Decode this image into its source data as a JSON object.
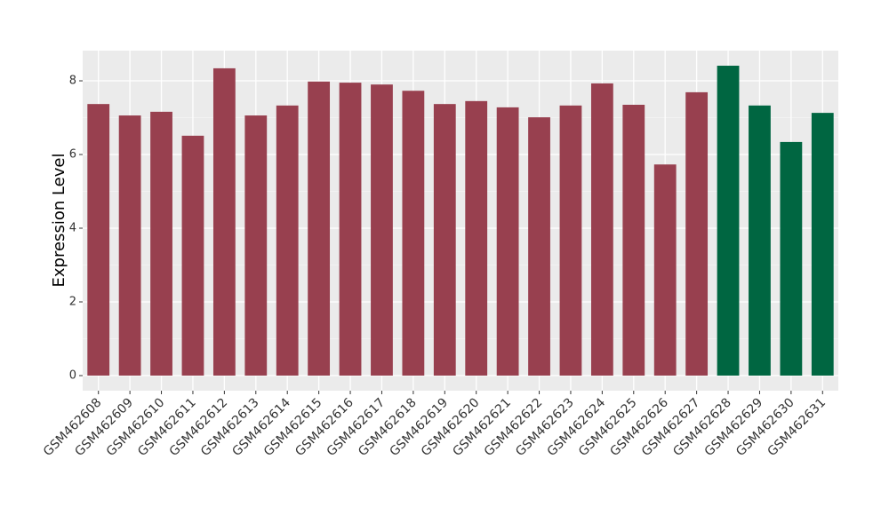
{
  "chart_data": {
    "type": "bar",
    "y_label": "Expression Level",
    "categories": [
      "GSM462608",
      "GSM462609",
      "GSM462610",
      "GSM462611",
      "GSM462612",
      "GSM462613",
      "GSM462614",
      "GSM462615",
      "GSM462616",
      "GSM462617",
      "GSM462618",
      "GSM462619",
      "GSM462620",
      "GSM462621",
      "GSM462622",
      "GSM462623",
      "GSM462624",
      "GSM462625",
      "GSM462626",
      "GSM462627",
      "GSM462628",
      "GSM462629",
      "GSM462630",
      "GSM462631"
    ],
    "values": [
      7.37,
      7.06,
      7.16,
      6.51,
      8.34,
      7.06,
      7.33,
      7.98,
      7.95,
      7.9,
      7.73,
      7.37,
      7.45,
      7.28,
      7.01,
      7.33,
      7.93,
      7.35,
      5.73,
      7.69,
      8.41,
      7.33,
      6.34,
      7.13
    ],
    "colors": [
      "#98404f",
      "#98404f",
      "#98404f",
      "#98404f",
      "#98404f",
      "#98404f",
      "#98404f",
      "#98404f",
      "#98404f",
      "#98404f",
      "#98404f",
      "#98404f",
      "#98404f",
      "#98404f",
      "#98404f",
      "#98404f",
      "#98404f",
      "#98404f",
      "#98404f",
      "#98404f",
      "#006641",
      "#006641",
      "#006641",
      "#006641"
    ],
    "ylim": [
      -0.41,
      8.82
    ],
    "yticks": [
      0,
      2,
      4,
      6,
      8
    ],
    "minor_yticks": [
      1,
      3,
      5,
      7
    ],
    "grid": true
  }
}
